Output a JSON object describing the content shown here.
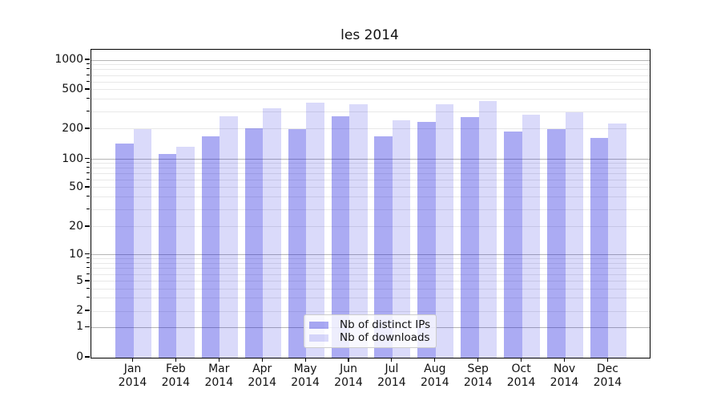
{
  "title": "les 2014",
  "chart_data": {
    "type": "bar",
    "categories": [
      "Jan",
      "Feb",
      "Mar",
      "Apr",
      "May",
      "Jun",
      "Jul",
      "Aug",
      "Sep",
      "Oct",
      "Nov",
      "Dec"
    ],
    "category_year": "2014",
    "series": [
      {
        "name": "Nb of distinct IPs",
        "color": "rgba(10,10,220,0.34)",
        "values": [
          143,
          113,
          168,
          205,
          201,
          268,
          170,
          237,
          264,
          190,
          200,
          162
        ]
      },
      {
        "name": "Nb of downloads",
        "color": "rgba(10,10,220,0.15)",
        "values": [
          200,
          133,
          270,
          328,
          372,
          357,
          245,
          355,
          387,
          278,
          296,
          226
        ]
      }
    ],
    "yscale": "symlog",
    "yticks": [
      0,
      1,
      2,
      5,
      10,
      20,
      50,
      100,
      200,
      500,
      1000
    ],
    "ylim": [
      0,
      1275
    ],
    "xlabel": "",
    "ylabel": "",
    "grid": true,
    "legend_position": "lower center"
  },
  "colors": {
    "background": "#ffffff",
    "grid_major": "#b5b5b5",
    "grid_minor": "#e8e8e8",
    "spine": "#000000",
    "text": "#111111",
    "legend_border": "#cccccc"
  }
}
